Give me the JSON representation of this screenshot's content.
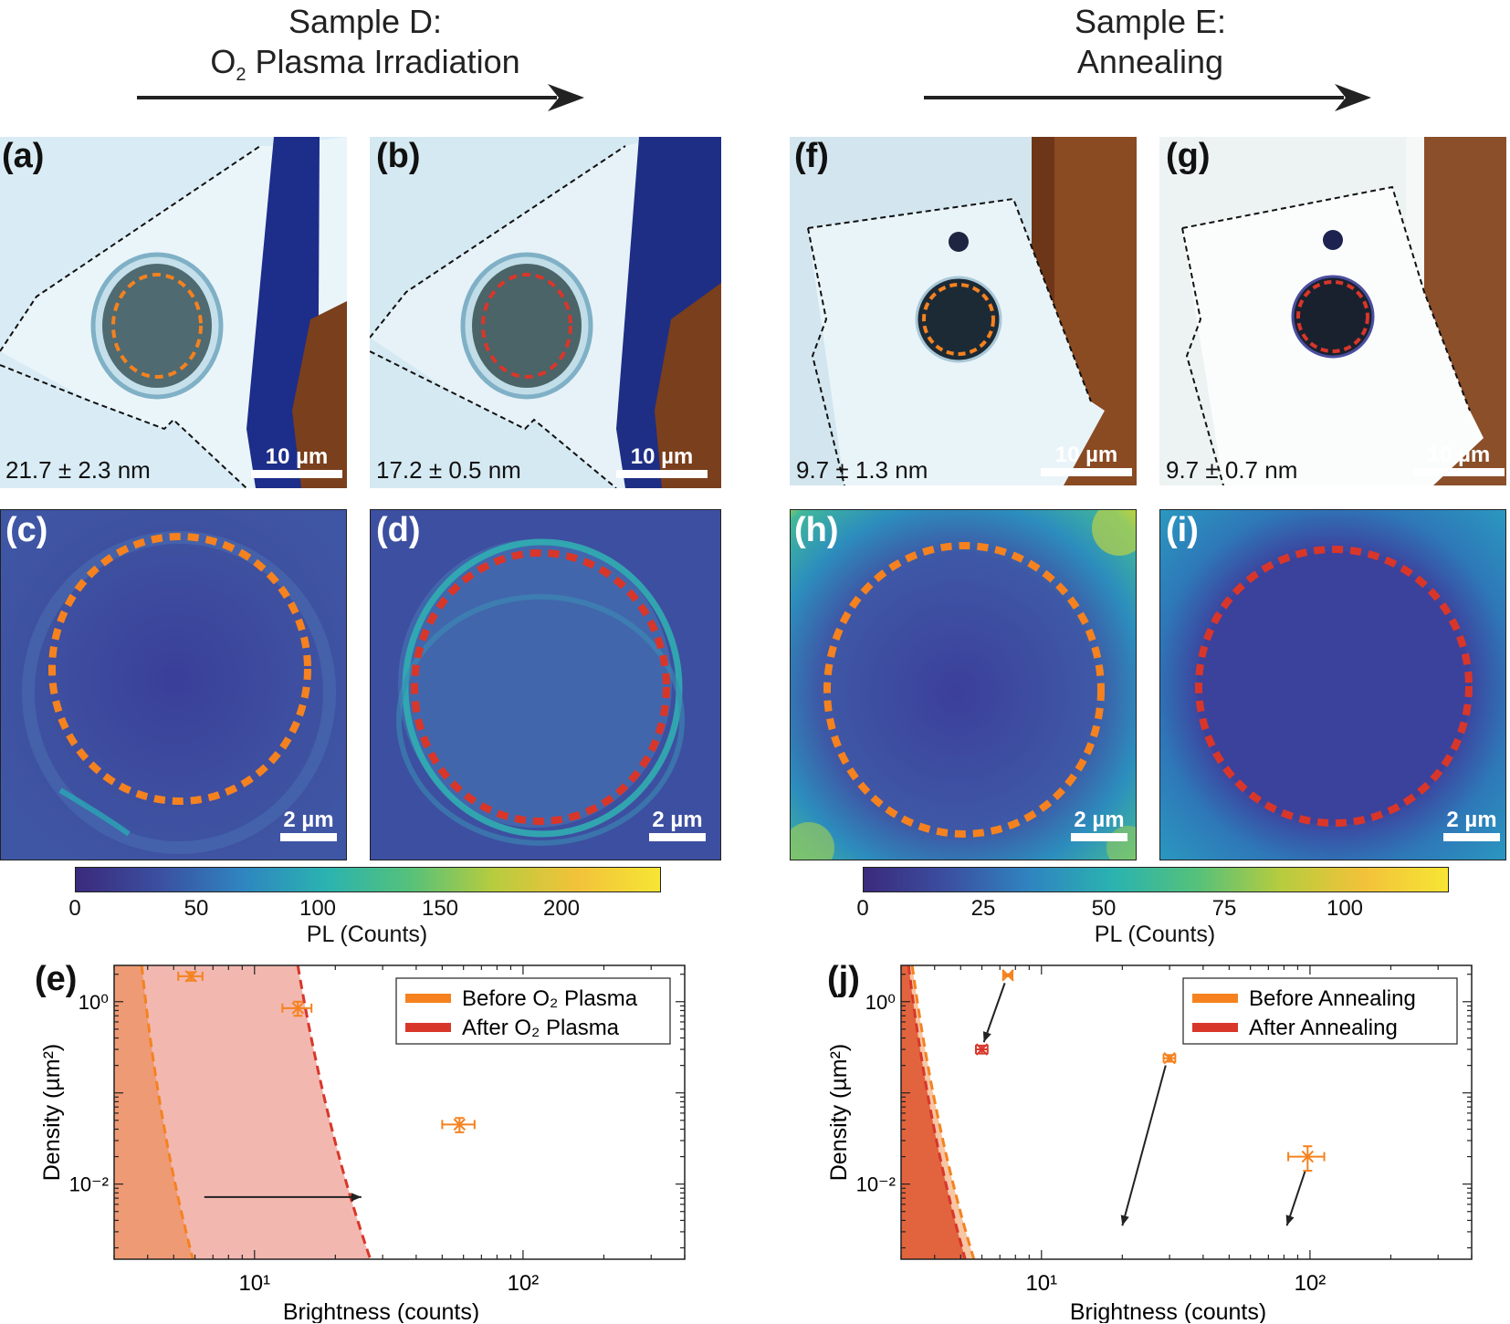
{
  "headings": {
    "left_line1": "Sample D:",
    "left_line2_prefix": "O",
    "left_line2_sub": "2",
    "left_line2_rest": " Plasma Irradiation",
    "right_line1": "Sample E:",
    "right_line2": "Annealing"
  },
  "panels": {
    "a": {
      "label": "(a)",
      "thickness": "21.7 ± 2.3 nm",
      "scale": "10 µm"
    },
    "b": {
      "label": "(b)",
      "thickness": "17.2 ± 0.5 nm",
      "scale": "10 µm"
    },
    "f": {
      "label": "(f)",
      "thickness": "9.7 ± 1.3 nm",
      "scale": "10 µm"
    },
    "g": {
      "label": "(g)",
      "thickness": "9.7 ± 0.7 nm",
      "scale": "10 µm"
    },
    "c": {
      "label": "(c)",
      "scale": "2 µm"
    },
    "d": {
      "label": "(d)",
      "scale": "2 µm"
    },
    "h": {
      "label": "(h)",
      "scale": "2 µm"
    },
    "i": {
      "label": "(i)",
      "scale": "2 µm"
    }
  },
  "colorbars": {
    "left": {
      "ticks": [
        "0",
        "50",
        "100",
        "150",
        "200"
      ],
      "label": "PL (Counts)"
    },
    "right": {
      "ticks": [
        "0",
        "25",
        "50",
        "75",
        "100"
      ],
      "label": "PL (Counts)"
    }
  },
  "colors": {
    "before": "#f5821f",
    "after": "#d9362a",
    "fill_before": "#ee9a74",
    "fill_after_e": "#f2b8b0",
    "fill_after_j": "#e2643e",
    "fill_before_j": "#f7c6a4",
    "map_base": "#3b4f9e",
    "map_bright": "#2fb8b0"
  },
  "chart_data": [
    {
      "panel": "(e)",
      "type": "scatter",
      "xlabel": "Brightness (counts)",
      "ylabel": "Density (µm²)",
      "xscale": "log",
      "yscale": "log",
      "xlim": [
        3,
        400
      ],
      "ylim": [
        0.0015,
        2.5
      ],
      "xticks": [
        "10¹",
        "10²"
      ],
      "yticks": [
        "10⁰",
        "10⁻²"
      ],
      "legend": [
        "Before O₂ Plasma",
        "After O₂ Plasma"
      ],
      "legend_position": "top-right",
      "points": [
        {
          "series": "Before O₂ Plasma",
          "x": 5.8,
          "y": 1.9,
          "xerr": 0.6,
          "yerr": 0.2
        },
        {
          "series": "Before O₂ Plasma",
          "x": 14.5,
          "y": 0.85,
          "xerr": 1.8,
          "yerr": 0.15
        },
        {
          "series": "Before O₂ Plasma",
          "x": 58,
          "y": 0.045,
          "xerr": 8,
          "yerr": 0.008
        }
      ],
      "thresholds": [
        {
          "series": "Before O₂ Plasma",
          "x_top": 3.8,
          "x_bottom": 5.9
        },
        {
          "series": "After O₂ Plasma",
          "x_top": 14.5,
          "x_bottom": 27
        }
      ],
      "annotation_arrow": {
        "x_from": 6.5,
        "x_to": 25,
        "y": 0.0072
      }
    },
    {
      "panel": "(j)",
      "type": "scatter",
      "xlabel": "Brightness (counts)",
      "ylabel": "Density (µm²)",
      "xscale": "log",
      "yscale": "log",
      "xlim": [
        3,
        400
      ],
      "ylim": [
        0.0015,
        2.5
      ],
      "xticks": [
        "10¹",
        "10²"
      ],
      "yticks": [
        "10⁰",
        "10⁻²"
      ],
      "legend": [
        "Before Annealing",
        "After Annealing"
      ],
      "legend_position": "top-right",
      "points": [
        {
          "series": "Before Annealing",
          "x": 7.5,
          "y": 1.95,
          "xerr": 0.3,
          "yerr": 0.05
        },
        {
          "series": "Before Annealing",
          "x": 30,
          "y": 0.24,
          "xerr": 1.5,
          "yerr": 0.02
        },
        {
          "series": "Before Annealing",
          "x": 98,
          "y": 0.02,
          "xerr": 15,
          "yerr": 0.006
        },
        {
          "series": "After Annealing",
          "x": 6,
          "y": 0.3,
          "xerr": 0.3,
          "yerr": 0.03
        }
      ],
      "thresholds": [
        {
          "series": "After Annealing",
          "x_top": 3.2,
          "x_bottom": 5.2
        },
        {
          "series": "Before Annealing",
          "x_top": 3.3,
          "x_bottom": 5.6
        }
      ],
      "annotation_arrows": [
        {
          "x_from": 7.3,
          "y_from": 1.6,
          "x_to": 6.1,
          "y_to": 0.36
        },
        {
          "x_from": 29,
          "y_from": 0.2,
          "x_to": 20,
          "y_to": 0.0035
        },
        {
          "x_from": 96,
          "y_from": 0.014,
          "x_to": 82,
          "y_to": 0.0035
        }
      ]
    }
  ]
}
